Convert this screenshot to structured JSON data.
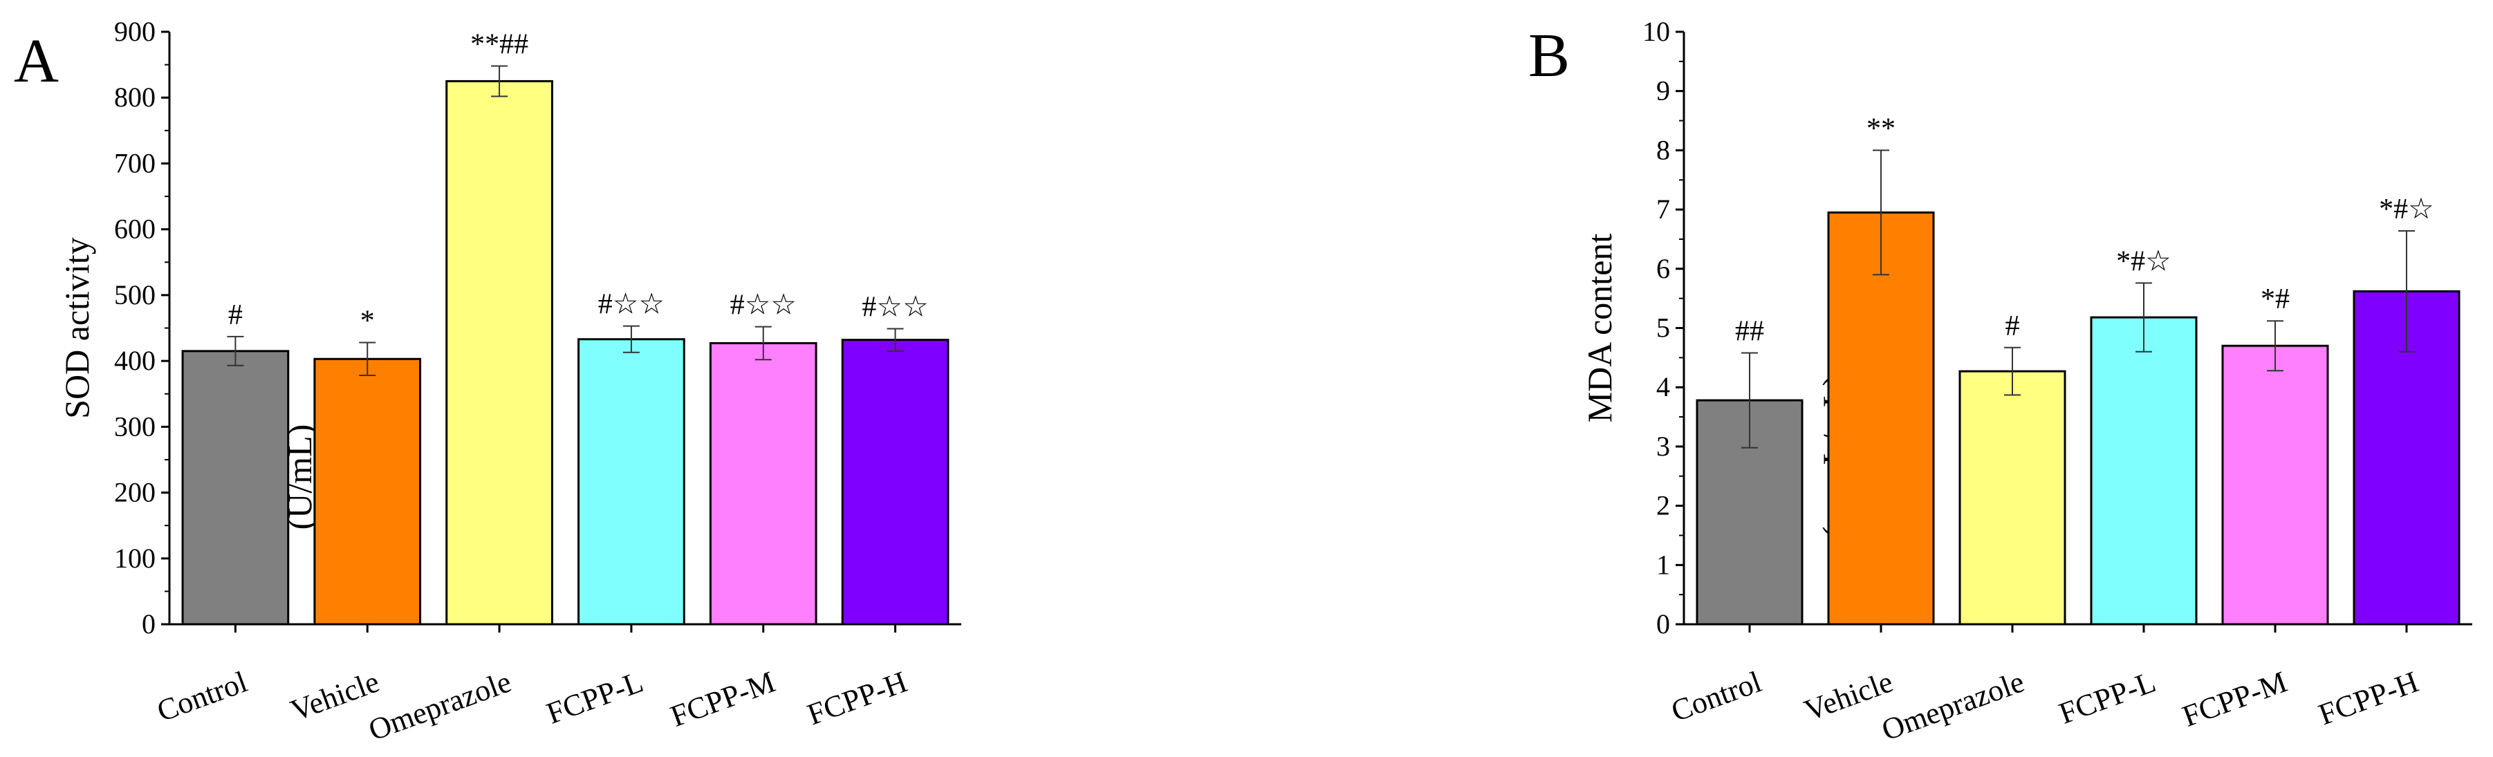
{
  "chart_data": [
    {
      "type": "bar",
      "panel_label": "A",
      "ylabel": "SOD activity",
      "unit_label": "(U/mL)",
      "categories": [
        "Control",
        "Vehicle",
        "Omeprazole",
        "FCPP-L",
        "FCPP-M",
        "FCPP-H"
      ],
      "values": [
        415,
        403,
        825,
        433,
        427,
        432
      ],
      "errors": [
        22,
        25,
        23,
        20,
        25,
        17
      ],
      "annotations": [
        "#",
        "*",
        "**##",
        "#☆☆",
        "#☆☆",
        "#☆☆"
      ],
      "colors": [
        "#808080",
        "#ff8000",
        "#ffff80",
        "#80ffff",
        "#ff80ff",
        "#8000ff"
      ],
      "ylim": [
        0,
        900
      ],
      "yticks": [
        0,
        100,
        200,
        300,
        400,
        500,
        600,
        700,
        800,
        900
      ],
      "grid": false
    },
    {
      "type": "bar",
      "panel_label": "B",
      "ylabel": "MDA content",
      "unit_label": "(nmoL/mL)",
      "categories": [
        "Control",
        "Vehicle",
        "Omeprazole",
        "FCPP-L",
        "FCPP-M",
        "FCPP-H"
      ],
      "values": [
        3.78,
        6.95,
        4.27,
        5.18,
        4.7,
        5.62
      ],
      "errors": [
        0.8,
        1.05,
        0.4,
        0.58,
        0.42,
        1.02
      ],
      "annotations": [
        "##",
        "**",
        "#",
        "*#☆",
        "*#",
        "*#☆"
      ],
      "colors": [
        "#808080",
        "#ff8000",
        "#ffff80",
        "#80ffff",
        "#ff80ff",
        "#8000ff"
      ],
      "ylim": [
        0,
        10
      ],
      "yticks": [
        0,
        1,
        2,
        3,
        4,
        5,
        6,
        7,
        8,
        9,
        10
      ],
      "grid": false
    }
  ]
}
